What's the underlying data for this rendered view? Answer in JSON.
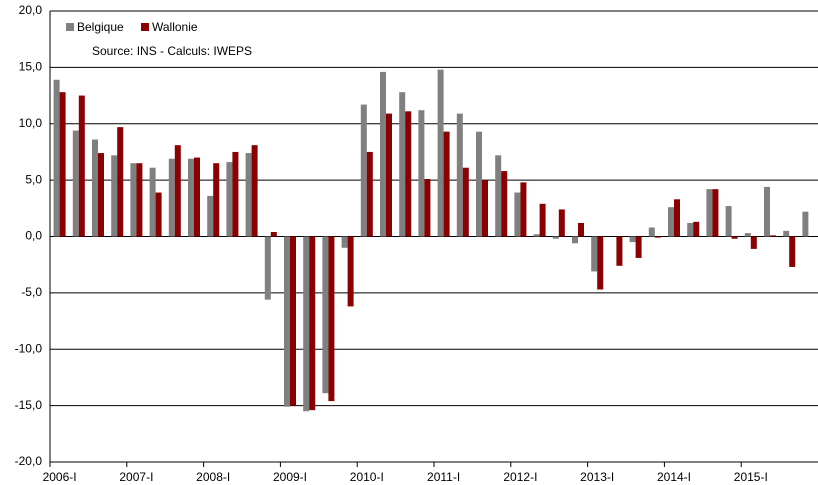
{
  "chart_data": {
    "type": "bar",
    "annotations": [
      "Source: INS - Calculs: IWEPS"
    ],
    "categories": [
      "2006-I",
      null,
      null,
      null,
      "2007-I",
      null,
      null,
      null,
      "2008-I",
      null,
      null,
      null,
      "2009-I",
      null,
      null,
      null,
      "2010-I",
      null,
      null,
      null,
      "2011-I",
      null,
      null,
      null,
      "2012-I",
      null,
      null,
      null,
      "2013-I",
      null,
      null,
      null,
      "2014-I",
      null,
      null,
      null,
      "2015-I",
      null,
      null,
      null
    ],
    "series": [
      {
        "name": "Belgique",
        "color": "#808080",
        "values": [
          13.9,
          9.4,
          8.6,
          7.2,
          6.5,
          6.1,
          6.9,
          6.9,
          3.6,
          6.6,
          7.4,
          -5.6,
          -15.1,
          -15.5,
          -13.9,
          -1.0,
          11.7,
          14.6,
          12.8,
          11.2,
          14.8,
          10.9,
          9.3,
          7.2,
          3.9,
          0.2,
          -0.2,
          -0.6,
          -3.1,
          0.0,
          -0.5,
          0.8,
          2.6,
          1.2,
          4.2,
          2.7,
          0.3,
          4.4,
          0.5,
          2.2
        ]
      },
      {
        "name": "Wallonie",
        "color": "#8b0000",
        "values": [
          12.8,
          12.5,
          7.4,
          9.7,
          6.5,
          3.9,
          8.1,
          7.0,
          6.5,
          7.5,
          8.1,
          0.4,
          -15.0,
          -15.4,
          -14.6,
          -6.2,
          7.5,
          10.9,
          11.1,
          5.1,
          9.3,
          6.1,
          5.0,
          5.8,
          4.8,
          2.9,
          2.4,
          1.2,
          -4.7,
          -2.6,
          -1.9,
          -0.1,
          3.3,
          1.3,
          4.2,
          -0.2,
          -1.1,
          0.1,
          -2.7,
          null
        ]
      }
    ],
    "ylim": [
      -20,
      20
    ],
    "yticks": [
      {
        "value": -20,
        "label": "-20,0"
      },
      {
        "value": -15,
        "label": "-15,0"
      },
      {
        "value": -10,
        "label": "-10,0"
      },
      {
        "value": -5,
        "label": "-5,0"
      },
      {
        "value": 0,
        "label": "0,0"
      },
      {
        "value": 5,
        "label": "5,0"
      },
      {
        "value": 10,
        "label": "10,0"
      },
      {
        "value": 15,
        "label": "15,0"
      },
      {
        "value": 20,
        "label": "20,0"
      }
    ],
    "grid": true,
    "legend": "top-left"
  }
}
